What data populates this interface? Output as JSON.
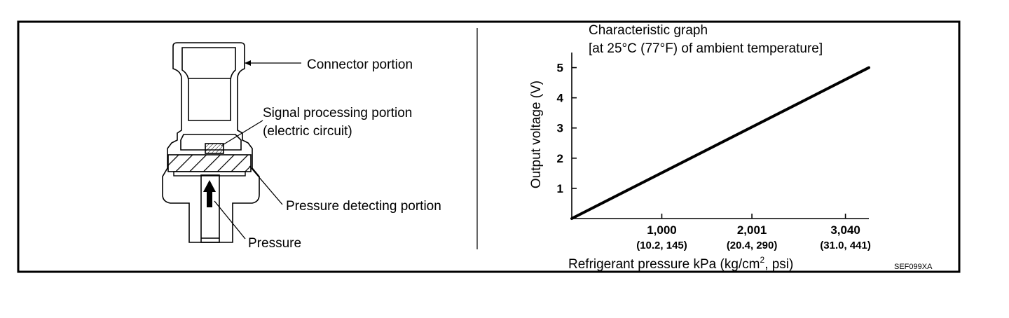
{
  "diagram": {
    "labels": {
      "connector": "Connector portion",
      "signal_line1": "Signal processing portion",
      "signal_line2": "(electric circuit)",
      "pressure_detecting": "Pressure detecting portion",
      "pressure": "Pressure"
    },
    "code": "SEF099XA",
    "colors": {
      "ink": "#000000",
      "background": "#ffffff"
    }
  },
  "chart_data": {
    "type": "line",
    "title_line1": "Characteristic graph",
    "title_line2": "[at 25°C (77°F) of ambient temperature]",
    "ylabel": "Output voltage (V)",
    "xlabel_main": "Refrigerant pressure kPa (kg/cm",
    "xlabel_sup": "2",
    "xlabel_tail": ", psi)",
    "xlim": [
      0,
      3300
    ],
    "ylim": [
      0,
      5.5
    ],
    "x_ticks": [
      {
        "value": 1000,
        "label": "1,000",
        "sub": "(10.2, 145)"
      },
      {
        "value": 2001,
        "label": "2,001",
        "sub": "(20.4, 290)"
      },
      {
        "value": 3040,
        "label": "3,040",
        "sub": "(31.0, 441)"
      }
    ],
    "y_ticks": [
      {
        "value": 1,
        "label": "1"
      },
      {
        "value": 2,
        "label": "2"
      },
      {
        "value": 3,
        "label": "3"
      },
      {
        "value": 4,
        "label": "4"
      },
      {
        "value": 5,
        "label": "5"
      }
    ],
    "series": [
      {
        "x": [
          0,
          3300
        ],
        "y": [
          0,
          5
        ]
      }
    ],
    "grid": false
  }
}
